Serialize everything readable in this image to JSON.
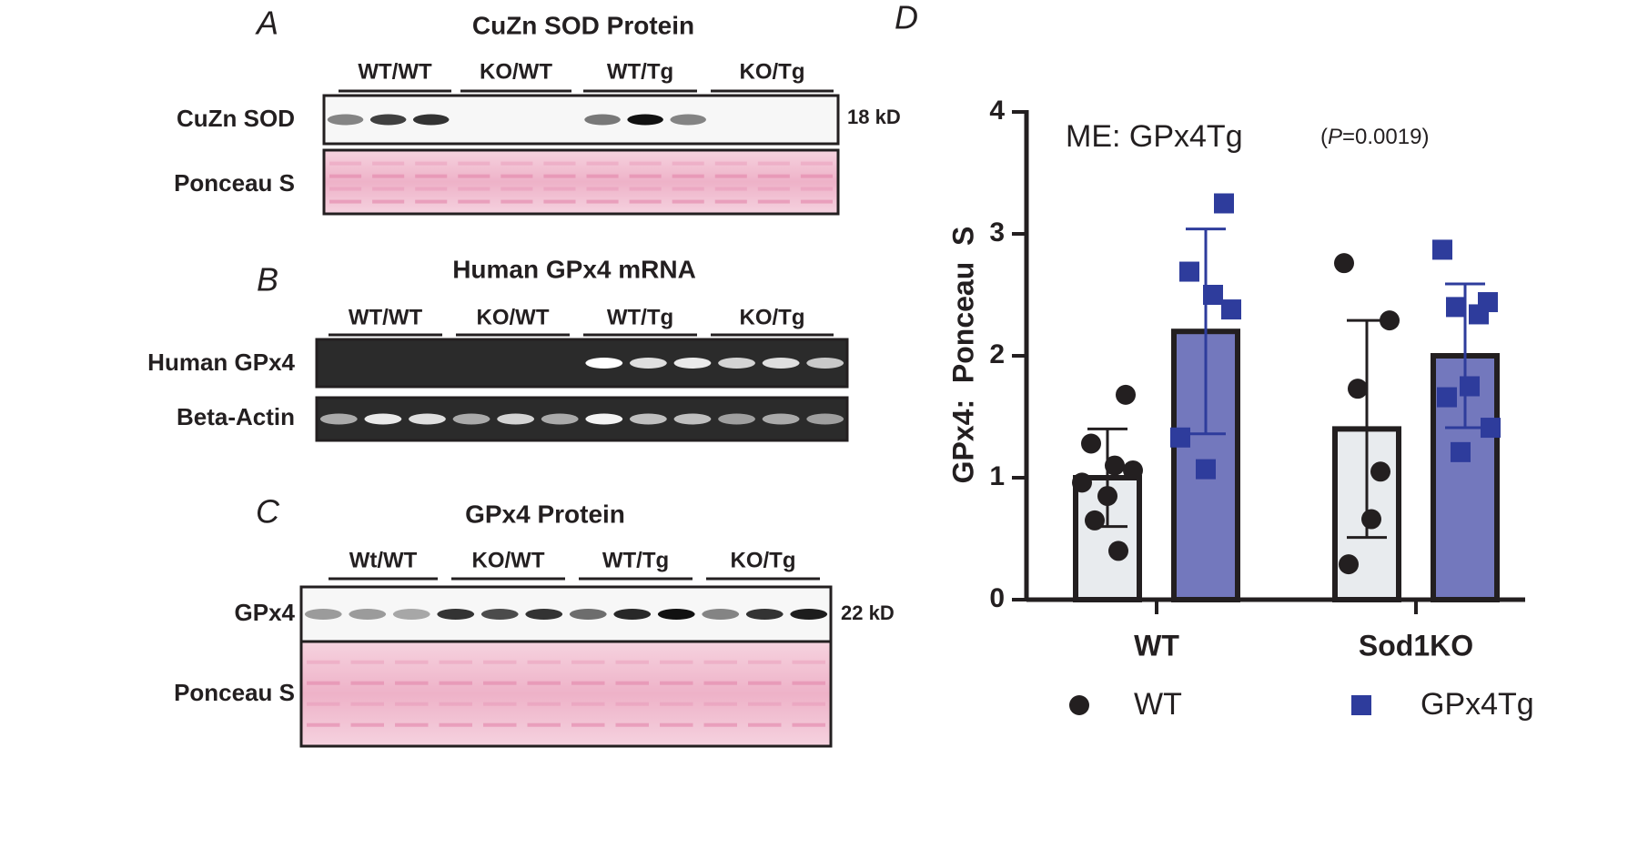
{
  "panels": [
    {
      "letter": "A",
      "title": "CuZn SOD Protein",
      "groups": [
        "WT/WT",
        "KO/WT",
        "WT/Tg",
        "KO/Tg"
      ],
      "rows": [
        "CuZn SOD",
        "Ponceau S"
      ],
      "size": "18 kD"
    },
    {
      "letter": "B",
      "title": "Human GPx4 mRNA",
      "groups": [
        "WT/WT",
        "KO/WT",
        "WT/Tg",
        "KO/Tg"
      ],
      "rows": [
        "Human GPx4",
        "Beta-Actin"
      ]
    },
    {
      "letter": "C",
      "title": "GPx4 Protein",
      "groups": [
        "Wt/WT",
        "KO/WT",
        "WT/Tg",
        "KO/Tg"
      ],
      "rows": [
        "GPx4",
        "Ponceau S"
      ],
      "size": "22 kD"
    }
  ],
  "chart_data": {
    "type": "bar",
    "letter": "D",
    "title": "ME: GPx4Tg",
    "annotation": [
      "(",
      "P",
      "=0.0019)"
    ],
    "y_label": "GPx4:  Ponceau  S",
    "categories": [
      "WT",
      "Sod1KO"
    ],
    "ylim": [
      0,
      4
    ],
    "yticks": [
      0,
      1,
      2,
      3,
      4
    ],
    "series": [
      {
        "name": "WT",
        "color": "#e8ebee",
        "marker_color": "#231f20",
        "marker": "circle",
        "values": [
          1.0,
          1.4
        ],
        "errors": [
          0.4,
          0.89
        ],
        "points": [
          [
            1.68,
            1.28,
            1.1,
            1.06,
            0.96,
            0.85,
            0.65,
            0.4
          ],
          [
            2.76,
            2.29,
            1.73,
            1.05,
            0.66,
            0.29
          ]
        ]
      },
      {
        "name": "GPx4Tg",
        "color": "#7378bd",
        "marker_color": "#2e3c9c",
        "marker": "square",
        "values": [
          2.2,
          2.0
        ],
        "errors": [
          0.84,
          0.59
        ],
        "points": [
          [
            3.25,
            2.69,
            2.5,
            2.38,
            1.33,
            1.07
          ],
          [
            2.87,
            2.44,
            2.4,
            2.34,
            1.75,
            1.66,
            1.41,
            1.21
          ]
        ]
      }
    ]
  }
}
